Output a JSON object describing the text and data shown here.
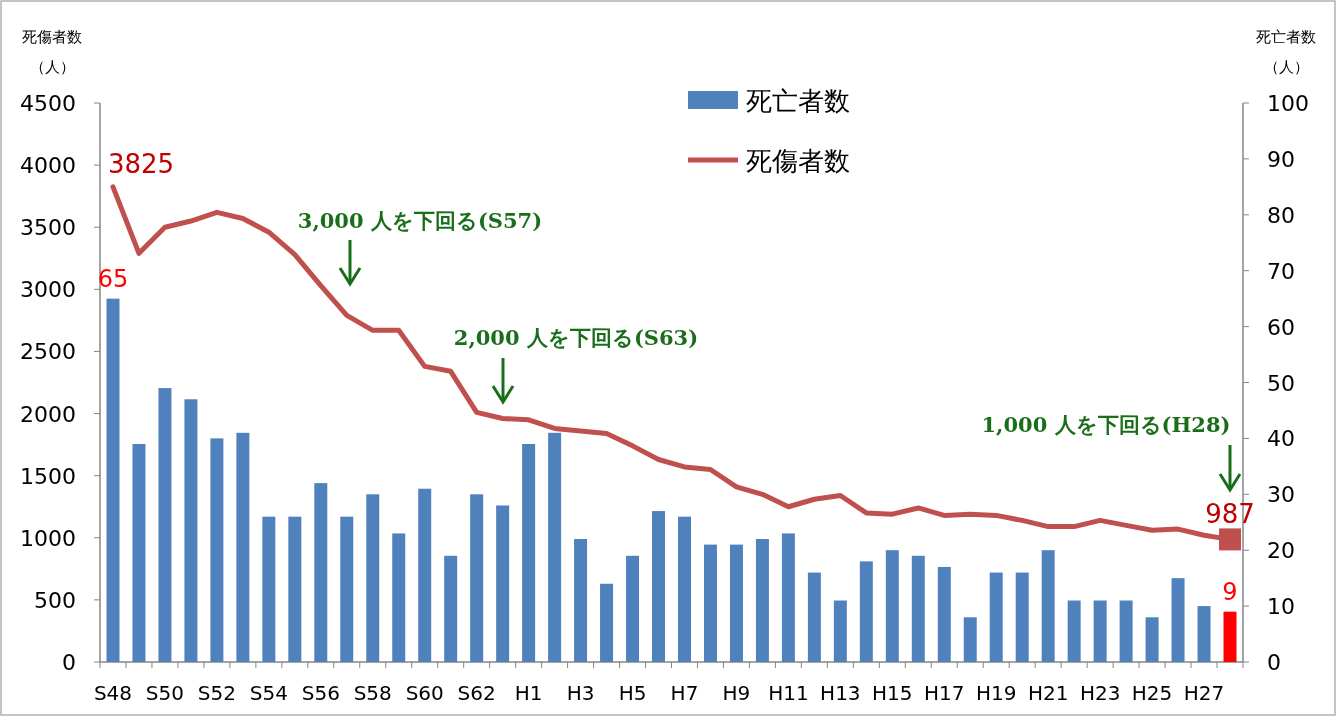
{
  "chart_data": {
    "type": "bar",
    "ylabel": "死傷者数（人）",
    "y2label": "死亡者数（人）",
    "categories": [
      "S48",
      null,
      "S50",
      null,
      "S52",
      null,
      "S54",
      null,
      "S56",
      null,
      "S58",
      null,
      "S60",
      null,
      "S62",
      null,
      "H1",
      null,
      "H3",
      null,
      "H5",
      null,
      "H7",
      null,
      "H9",
      null,
      "H11",
      null,
      "H13",
      null,
      "H15",
      null,
      "H17",
      null,
      "H19",
      null,
      "H21",
      null,
      "H23",
      null,
      "H25",
      null,
      "H27",
      null
    ],
    "series": [
      {
        "name": "死亡者数",
        "axis": "y2",
        "color": "#4f81bd",
        "colors": [
          "#4f81bd",
          "#4f81bd",
          "#4f81bd",
          "#4f81bd",
          "#4f81bd",
          "#4f81bd",
          "#4f81bd",
          "#4f81bd",
          "#4f81bd",
          "#4f81bd",
          "#4f81bd",
          "#4f81bd",
          "#4f81bd",
          "#4f81bd",
          "#4f81bd",
          "#4f81bd",
          "#4f81bd",
          "#4f81bd",
          "#4f81bd",
          "#4f81bd",
          "#4f81bd",
          "#4f81bd",
          "#4f81bd",
          "#4f81bd",
          "#4f81bd",
          "#4f81bd",
          "#4f81bd",
          "#4f81bd",
          "#4f81bd",
          "#4f81bd",
          "#4f81bd",
          "#4f81bd",
          "#4f81bd",
          "#4f81bd",
          "#4f81bd",
          "#4f81bd",
          "#4f81bd",
          "#4f81bd",
          "#4f81bd",
          "#4f81bd",
          "#4f81bd",
          "#4f81bd",
          "#4f81bd",
          "#ff0000"
        ],
        "values": [
          65,
          39,
          49,
          47,
          40,
          41,
          26,
          26,
          32,
          26,
          30,
          23,
          31,
          19,
          30,
          28,
          39,
          41,
          22,
          14,
          19,
          27,
          26,
          21,
          21,
          22,
          23,
          16,
          11,
          18,
          20,
          19,
          17,
          8,
          16,
          16,
          20,
          11,
          11,
          11,
          8,
          15,
          10,
          9
        ],
        "value_labels": [
          "65",
          null,
          null,
          null,
          null,
          null,
          null,
          null,
          null,
          null,
          null,
          null,
          null,
          null,
          null,
          null,
          null,
          null,
          null,
          null,
          null,
          null,
          null,
          null,
          null,
          null,
          null,
          null,
          null,
          null,
          null,
          null,
          null,
          null,
          null,
          null,
          null,
          null,
          null,
          null,
          null,
          null,
          null,
          "9"
        ]
      },
      {
        "name": "死傷者数",
        "type": "line",
        "color": "#c0504d",
        "values": [
          3825,
          3290,
          3500,
          3550,
          3620,
          3570,
          3460,
          3280,
          3030,
          2790,
          2670,
          2670,
          2380,
          2340,
          2010,
          1960,
          1950,
          1880,
          1860,
          1840,
          1740,
          1630,
          1570,
          1550,
          1410,
          1350,
          1250,
          1310,
          1340,
          1200,
          1190,
          1240,
          1180,
          1190,
          1180,
          1140,
          1090,
          1090,
          1140,
          1100,
          1060,
          1070,
          1020,
          987
        ],
        "value_labels": [
          "3825",
          null,
          null,
          null,
          null,
          null,
          null,
          null,
          null,
          null,
          null,
          null,
          null,
          null,
          null,
          null,
          null,
          null,
          null,
          null,
          null,
          null,
          null,
          null,
          null,
          null,
          null,
          null,
          null,
          null,
          null,
          null,
          null,
          null,
          null,
          null,
          null,
          null,
          null,
          null,
          null,
          null,
          null,
          "987"
        ]
      }
    ],
    "ylim": [
      0,
      4500
    ],
    "yticks": [
      0,
      500,
      1000,
      1500,
      2000,
      2500,
      3000,
      3500,
      4000,
      4500
    ],
    "y2lim": [
      0,
      100
    ],
    "y2ticks": [
      0,
      10,
      20,
      30,
      40,
      50,
      60,
      70,
      80,
      90,
      100
    ],
    "legend": "top",
    "annotations": [
      "3,000 人を下回る(S57)",
      "2,000 人を下回る(S63)",
      "1,000 人を下回る(H28)"
    ]
  }
}
